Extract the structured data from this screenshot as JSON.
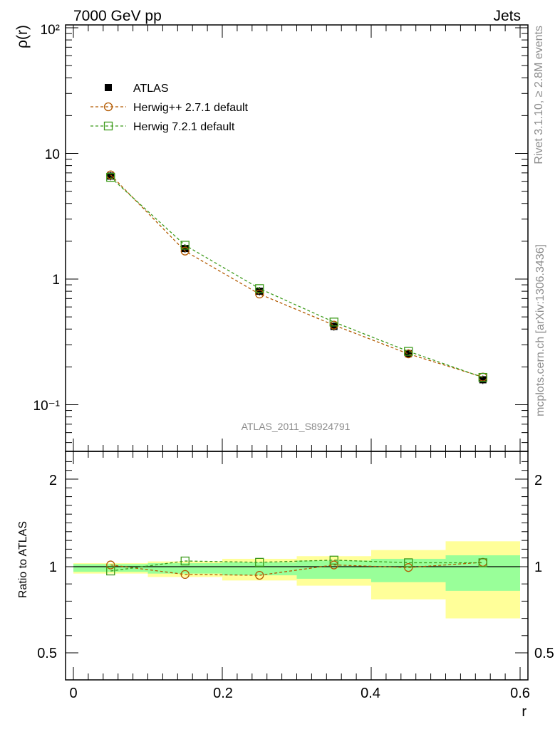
{
  "header": {
    "left": "7000 GeV pp",
    "right": "Jets"
  },
  "side_labels": {
    "rivet": "Rivet 3.1.10, ≥ 2.8M events",
    "mcplots": "mcplots.cern.ch [arXiv:1306.3436]"
  },
  "watermark": "ATLAS_2011_S8924791",
  "colors": {
    "herwigpp": "#b35a00",
    "herwig7": "#3c9a1a",
    "band_inner": "#99ff99",
    "band_outer": "#ffff99",
    "data": "#000000"
  },
  "chart_data": [
    {
      "type": "scatter",
      "ylabel": "ρ(r)",
      "yscale": "log",
      "ylim": [
        0.045,
        110
      ],
      "xlim": [
        -0.01,
        0.6
      ],
      "ytick_labels": [
        "10⁻¹",
        "1",
        "10",
        "10²"
      ],
      "legend": {
        "placement": "top-left",
        "entries": [
          "ATLAS",
          "Herwig++ 2.7.1 default",
          "Herwig 7.2.1 default"
        ]
      },
      "x": [
        0.05,
        0.15,
        0.25,
        0.35,
        0.45,
        0.55
      ],
      "series": [
        {
          "name": "ATLAS",
          "values": [
            6.6,
            1.75,
            0.8,
            0.42,
            0.255,
            0.158
          ]
        },
        {
          "name": "Herwig++ 2.7.1 default",
          "values": [
            6.75,
            1.67,
            0.76,
            0.43,
            0.254,
            0.166
          ]
        },
        {
          "name": "Herwig 7.2.1 default",
          "values": [
            6.45,
            1.86,
            0.84,
            0.455,
            0.266,
            0.165
          ]
        }
      ]
    },
    {
      "type": "scatter",
      "ylabel": "Ratio to ATLAS",
      "xlabel": "r",
      "ylim": [
        0.45,
        2.3
      ],
      "xlim": [
        -0.01,
        0.6
      ],
      "yticks": [
        0.5,
        1,
        2
      ],
      "ytick_labels": [
        "0.5",
        "1",
        "2"
      ],
      "xticks": [
        0,
        0.2,
        0.4,
        0.6
      ],
      "xtick_labels": [
        "0",
        "0.2",
        "0.4",
        "0.6"
      ],
      "x": [
        0.05,
        0.15,
        0.25,
        0.35,
        0.45,
        0.55
      ],
      "bins": [
        [
          0,
          0.1
        ],
        [
          0.1,
          0.2
        ],
        [
          0.2,
          0.3
        ],
        [
          0.3,
          0.4
        ],
        [
          0.4,
          0.5
        ],
        [
          0.5,
          0.6
        ]
      ],
      "band_inner": [
        [
          0.97,
          1.03
        ],
        [
          0.96,
          1.04
        ],
        [
          0.95,
          1.05
        ],
        [
          0.93,
          1.07
        ],
        [
          0.91,
          1.09
        ],
        [
          0.86,
          1.13
        ]
      ],
      "band_outer": [
        [
          0.96,
          1.04
        ],
        [
          0.94,
          1.06
        ],
        [
          0.92,
          1.09
        ],
        [
          0.89,
          1.12
        ],
        [
          0.81,
          1.19
        ],
        [
          0.7,
          1.29
        ]
      ],
      "series": [
        {
          "name": "Herwig++ 2.7.1 default",
          "values": [
            1.02,
            0.955,
            0.95,
            1.02,
            0.995,
            1.05
          ]
        },
        {
          "name": "Herwig 7.2.1 default",
          "values": [
            0.975,
            1.065,
            1.05,
            1.075,
            1.045,
            1.045
          ]
        }
      ]
    }
  ]
}
